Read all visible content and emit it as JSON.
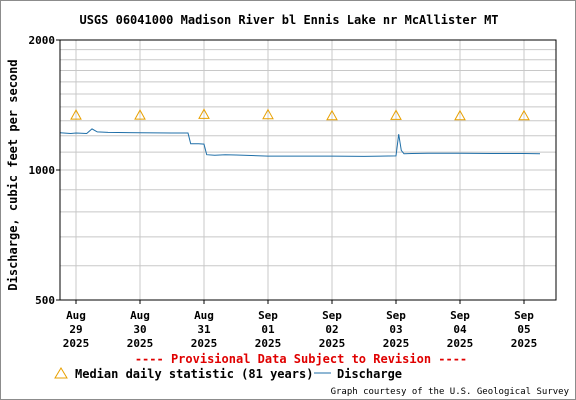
{
  "chart_data": {
    "type": "line",
    "title": "USGS 06041000 Madison River bl Ennis Lake nr McAllister MT",
    "ylabel": "Discharge, cubic feet per second",
    "yscale": "log",
    "ylim": [
      500,
      2000
    ],
    "yticks": [
      {
        "value": 2000,
        "label": "2000"
      },
      {
        "value": 1000,
        "label": "1000"
      },
      {
        "value": 500,
        "label": "500"
      }
    ],
    "xlim": [
      "2025-08-28T18:00",
      "2025-09-05T12:00"
    ],
    "xticks": [
      {
        "date": "2025-08-29",
        "month": "Aug",
        "day": "29",
        "year": "2025"
      },
      {
        "date": "2025-08-30",
        "month": "Aug",
        "day": "30",
        "year": "2025"
      },
      {
        "date": "2025-08-31",
        "month": "Aug",
        "day": "31",
        "year": "2025"
      },
      {
        "date": "2025-09-01",
        "month": "Sep",
        "day": "01",
        "year": "2025"
      },
      {
        "date": "2025-09-02",
        "month": "Sep",
        "day": "02",
        "year": "2025"
      },
      {
        "date": "2025-09-03",
        "month": "Sep",
        "day": "03",
        "year": "2025"
      },
      {
        "date": "2025-09-04",
        "month": "Sep",
        "day": "04",
        "year": "2025"
      },
      {
        "date": "2025-09-05",
        "month": "Sep",
        "day": "05",
        "year": "2025"
      }
    ],
    "grid": true,
    "series": [
      {
        "name": "Discharge",
        "color": "#1f6fa8",
        "points": [
          [
            "2025-08-28T18:00",
            1220
          ],
          [
            "2025-08-28T22:00",
            1215
          ],
          [
            "2025-08-29T00:00",
            1218
          ],
          [
            "2025-08-29T04:00",
            1215
          ],
          [
            "2025-08-29T06:00",
            1245
          ],
          [
            "2025-08-29T08:00",
            1225
          ],
          [
            "2025-08-29T12:00",
            1222
          ],
          [
            "2025-08-30T00:00",
            1220
          ],
          [
            "2025-08-30T12:00",
            1218
          ],
          [
            "2025-08-30T18:00",
            1218
          ],
          [
            "2025-08-30T19:00",
            1150
          ],
          [
            "2025-08-30T22:00",
            1150
          ],
          [
            "2025-08-31T00:00",
            1148
          ],
          [
            "2025-08-31T01:00",
            1085
          ],
          [
            "2025-08-31T04:00",
            1082
          ],
          [
            "2025-08-31T08:00",
            1085
          ],
          [
            "2025-08-31T12:00",
            1083
          ],
          [
            "2025-09-01T00:00",
            1077
          ],
          [
            "2025-09-01T12:00",
            1077
          ],
          [
            "2025-09-02T00:00",
            1077
          ],
          [
            "2025-09-02T12:00",
            1075
          ],
          [
            "2025-09-03T00:00",
            1078
          ],
          [
            "2025-09-03T01:00",
            1210
          ],
          [
            "2025-09-03T02:00",
            1110
          ],
          [
            "2025-09-03T03:00",
            1090
          ],
          [
            "2025-09-03T06:00",
            1092
          ],
          [
            "2025-09-03T12:00",
            1093
          ],
          [
            "2025-09-04T00:00",
            1093
          ],
          [
            "2025-09-04T12:00",
            1092
          ],
          [
            "2025-09-05T00:00",
            1092
          ],
          [
            "2025-09-05T06:00",
            1090
          ]
        ]
      }
    ],
    "median": {
      "name": "Median daily statistic (81 years)",
      "color": "#e8a000",
      "points": [
        [
          "2025-08-29T00:00",
          1340
        ],
        [
          "2025-08-30T00:00",
          1340
        ],
        [
          "2025-08-31T00:00",
          1345
        ],
        [
          "2025-09-01T00:00",
          1343
        ],
        [
          "2025-09-02T00:00",
          1335
        ],
        [
          "2025-09-03T00:00",
          1338
        ],
        [
          "2025-09-04T00:00",
          1335
        ],
        [
          "2025-09-05T00:00",
          1335
        ]
      ]
    },
    "notice": "---- Provisional Data Subject to Revision ----",
    "credit": "Graph courtesy of the U.S. Geological Survey"
  }
}
